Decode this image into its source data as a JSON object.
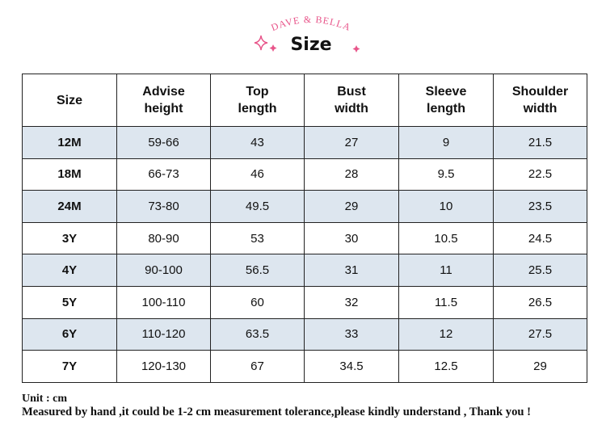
{
  "header": {
    "brand": "DAVE & BELLA",
    "title": "Size"
  },
  "table": {
    "columns": [
      [
        "Size"
      ],
      [
        "Advise",
        "height"
      ],
      [
        "Top",
        "length"
      ],
      [
        "Bust",
        "width"
      ],
      [
        "Sleeve",
        "length"
      ],
      [
        "Shoulder",
        "width"
      ]
    ],
    "rows": [
      [
        "12M",
        "59-66",
        "43",
        "27",
        "9",
        "21.5"
      ],
      [
        "18M",
        "66-73",
        "46",
        "28",
        "9.5",
        "22.5"
      ],
      [
        "24M",
        "73-80",
        "49.5",
        "29",
        "10",
        "23.5"
      ],
      [
        "3Y",
        "80-90",
        "53",
        "30",
        "10.5",
        "24.5"
      ],
      [
        "4Y",
        "90-100",
        "56.5",
        "31",
        "11",
        "25.5"
      ],
      [
        "5Y",
        "100-110",
        "60",
        "32",
        "11.5",
        "26.5"
      ],
      [
        "6Y",
        "110-120",
        "63.5",
        "33",
        "12",
        "27.5"
      ],
      [
        "7Y",
        "120-130",
        "67",
        "34.5",
        "12.5",
        "29"
      ]
    ]
  },
  "footer": {
    "unit": "Unit : cm",
    "note": "Measured by hand ,it could be 1-2 cm measurement tolerance,please kindly understand , Thank you !"
  }
}
